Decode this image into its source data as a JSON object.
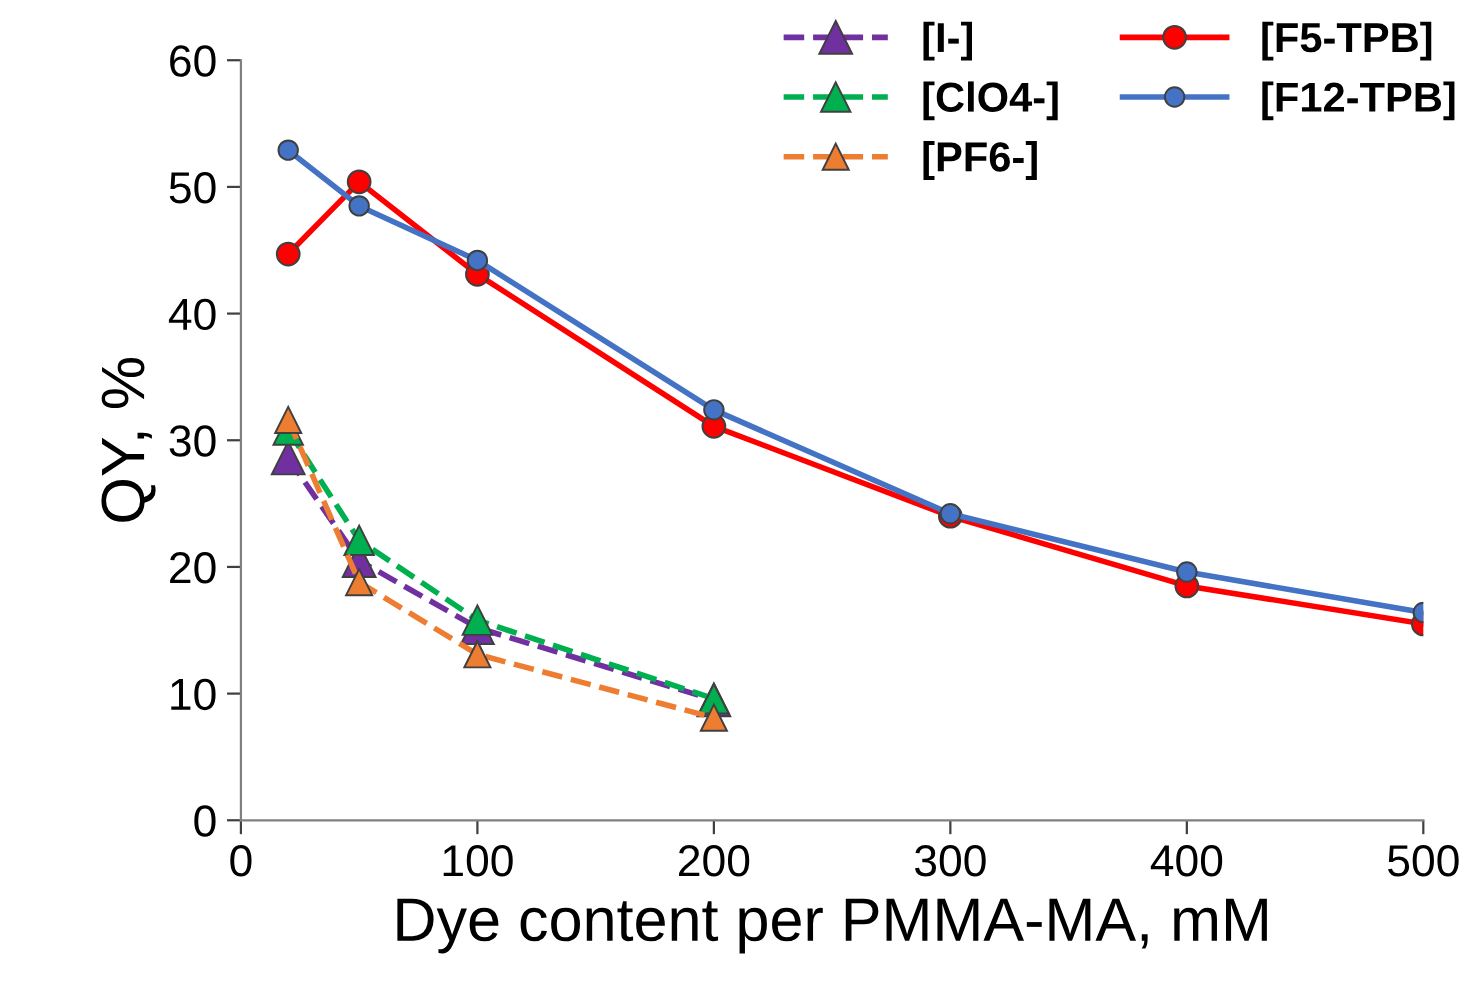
{
  "chart_data": {
    "type": "line",
    "xlabel": "Dye content per PMMA-MA, mM",
    "ylabel": "QY, %",
    "x": [
      20,
      50,
      100,
      200,
      300,
      400,
      500
    ],
    "xlim": [
      0,
      500
    ],
    "xticks": [
      0,
      100,
      200,
      300,
      400,
      500
    ],
    "ylim": [
      0,
      60
    ],
    "yticks": [
      0,
      10,
      20,
      30,
      40,
      50,
      60
    ],
    "grid": false,
    "legend": "top right",
    "series": [
      {
        "name": "[I-]",
        "color": "#7030a0",
        "marker": "triangle",
        "line_style": "dashed",
        "values": [
          28.6,
          20.5,
          15.2,
          9.5,
          null,
          null,
          null
        ]
      },
      {
        "name": "[ClO4-]",
        "color": "#00b050",
        "marker": "triangle",
        "line_style": "dashed",
        "values": [
          30.8,
          22.1,
          15.8,
          9.6,
          null,
          null,
          null
        ]
      },
      {
        "name": "[PF6-]",
        "color": "#ed7d31",
        "marker": "triangle",
        "line_style": "dashed",
        "values": [
          31.6,
          18.8,
          13.1,
          8.1,
          null,
          null,
          null
        ]
      },
      {
        "name": "[F5-TPB]",
        "color": "#ff0000",
        "marker": "circle",
        "line_style": "solid",
        "values": [
          44.7,
          50.4,
          43.1,
          31.1,
          24.0,
          18.5,
          15.5
        ]
      },
      {
        "name": "[F12-TPB]",
        "color": "#4472c4",
        "marker": "circle",
        "line_style": "solid",
        "values": [
          52.9,
          48.5,
          44.2,
          32.4,
          24.2,
          19.6,
          16.4
        ]
      }
    ]
  }
}
